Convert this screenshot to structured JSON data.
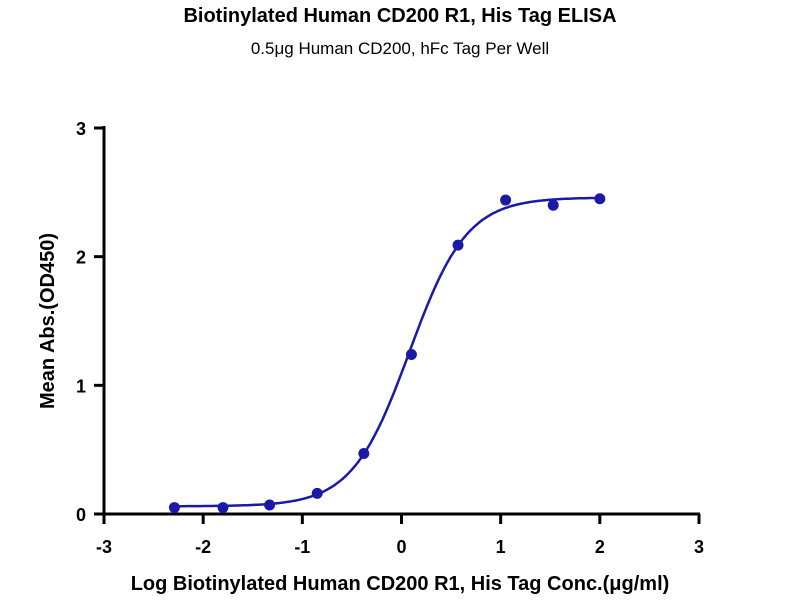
{
  "chart_data": {
    "type": "scatter",
    "title": "Biotinylated Human CD200 R1, His Tag ELISA",
    "subtitle": "0.5μg Human CD200, hFc Tag Per Well",
    "xlabel": "Log Biotinylated Human CD200 R1, His Tag Conc.(μg/ml)",
    "ylabel": "Mean Abs.(OD450)",
    "xlim": [
      -3,
      3
    ],
    "ylim": [
      0,
      3
    ],
    "xticks": [
      "-3",
      "-2",
      "-1",
      "0",
      "1",
      "2",
      "3"
    ],
    "yticks": [
      "0",
      "1",
      "2",
      "3"
    ],
    "color": "#1a1aa6",
    "grid": false,
    "series": [
      {
        "name": "Mean Abs",
        "x": [
          -2.29,
          -1.8,
          -1.33,
          -0.85,
          -0.38,
          0.1,
          0.57,
          1.05,
          1.53,
          2.0
        ],
        "y": [
          0.05,
          0.05,
          0.07,
          0.16,
          0.47,
          1.24,
          2.09,
          2.44,
          2.4,
          2.45
        ]
      }
    ],
    "fit": {
      "model": "4PL",
      "bottom": 0.06,
      "top": 2.46,
      "logEC50": 0.08,
      "hill": 1.5
    }
  }
}
